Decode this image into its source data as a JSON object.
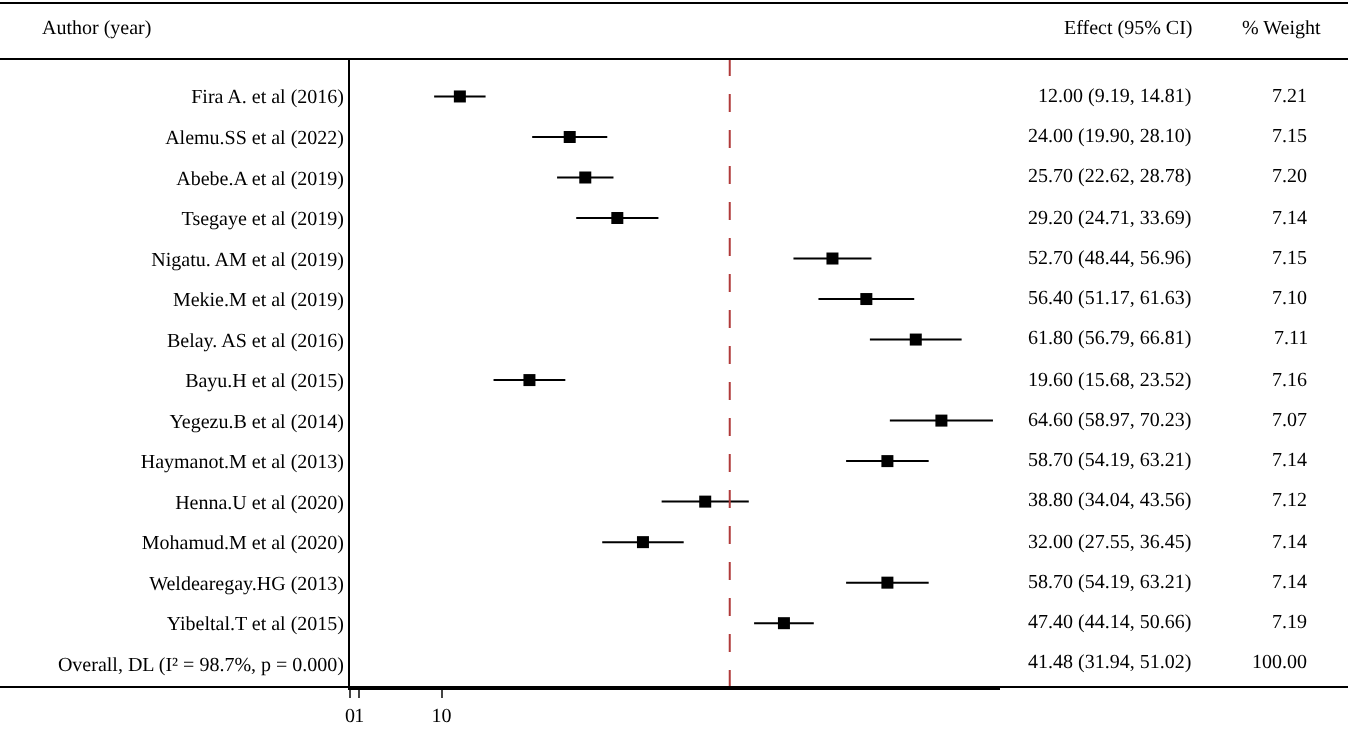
{
  "chart_data": {
    "type": "scatter",
    "orientation": "horizontal",
    "ylabel": "Author (year)",
    "annotations": [
      "Effect (95% CI)",
      "% Weight",
      "7.21",
      "7.15",
      "7.20",
      "7.14",
      "7.15",
      "7.10",
      "7.11",
      "7.16",
      "7.07",
      "7.14",
      "7.12",
      "7.14",
      "7.14",
      "7.19",
      "100.00"
    ],
    "categories": [
      "Fira A. et al (2016)",
      "Alemu.SS et al (2022)",
      "Abebe.A et al (2019)",
      "Tsegaye et al (2019)",
      "Nigatu. AM et al (2019)",
      "Mekie.M et al (2019)",
      "Belay. AS et al (2016)",
      "Bayu.H et al (2015)",
      "Yegezu.B et al (2014)",
      "Haymanot.M et al (2013)",
      "Henna.U et al (2020)",
      "Mohamud.M et al (2020)",
      "Weldearegay.HG (2013)",
      "Yibeltal.T et al (2015)",
      "Overall, DL (I² = 98.7%, p = 0.000)"
    ],
    "series": [
      {
        "color": "#000000",
        "values": [
          12.0,
          24.0,
          25.7,
          29.2,
          52.7,
          56.4,
          61.8,
          19.6,
          64.6,
          58.7,
          38.8,
          32.0,
          58.7,
          47.4,
          null
        ],
        "errors": [
          [
            9.19,
            14.81
          ],
          [
            19.9,
            28.1
          ],
          [
            22.62,
            28.78
          ],
          [
            24.71,
            33.69
          ],
          [
            48.44,
            56.96
          ],
          [
            51.17,
            61.63
          ],
          [
            56.79,
            66.81
          ],
          [
            15.68,
            23.52
          ],
          [
            58.97,
            70.23
          ],
          [
            54.19,
            63.21
          ],
          [
            34.04,
            43.56
          ],
          [
            27.55,
            36.45
          ],
          [
            54.19,
            63.21
          ],
          [
            44.14,
            50.66
          ],
          null
        ],
        "value_labels": [
          "12.00 (9.19, 14.81)",
          "24.00 (19.90, 28.10)",
          "25.70 (22.62, 28.78)",
          "29.20 (24.71, 33.69)",
          "52.70 (48.44, 56.96)",
          "56.40 (51.17, 61.63)",
          "61.80 (56.79, 66.81)",
          "19.60 (15.68, 23.52)",
          "64.60 (58.97, 70.23)",
          "58.70 (54.19, 63.21)",
          "38.80 (34.04, 43.56)",
          "32.00 (27.55, 36.45)",
          "58.70 (54.19, 63.21)",
          "47.40 (44.14, 50.66)",
          "41.48 (31.94, 51.02)"
        ]
      }
    ],
    "xlim": [
      0,
      71
    ],
    "xticks": [
      0,
      1,
      10
    ],
    "ref_lines": [
      {
        "axis": "x",
        "value": 41.48,
        "color": "#b03a3a",
        "line_style": "dashed"
      }
    ],
    "marker": "square",
    "grid": false
  }
}
